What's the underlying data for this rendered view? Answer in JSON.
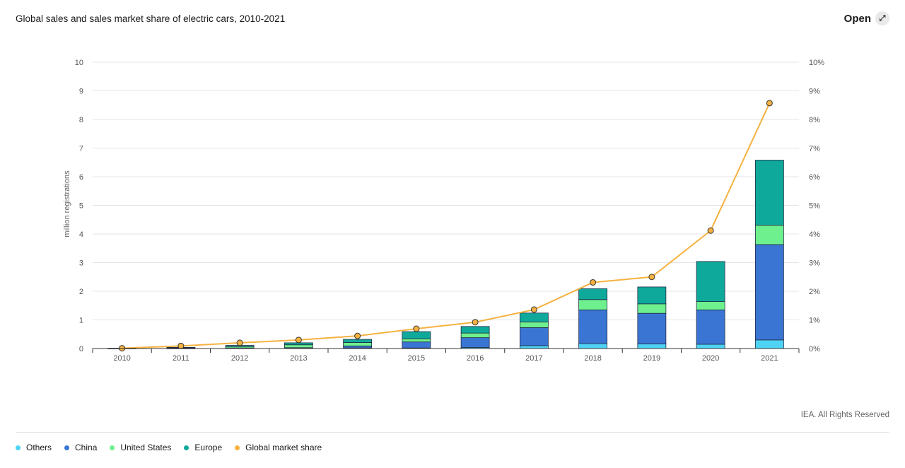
{
  "header": {
    "title": "Global sales and sales market share of electric cars, 2010-2021",
    "open_label": "Open",
    "open_icon": "expand-arrows-icon"
  },
  "footer": {
    "credit": "IEA. All Rights Reserved"
  },
  "colors": {
    "Others": "#4fd3f5",
    "China": "#3a75d4",
    "United States": "#6ef08e",
    "Europe": "#0fa99b",
    "Global market share": "#f5b240"
  },
  "chart_data": {
    "type": "bar",
    "stacked": true,
    "title": "Global sales and sales market share of electric cars, 2010-2021",
    "ylabel": "million registrations",
    "ylim": [
      0,
      10
    ],
    "y_ticks": [
      "0",
      "1",
      "2",
      "3",
      "4",
      "5",
      "6",
      "7",
      "8",
      "9",
      "10"
    ],
    "y2lim": [
      0,
      10
    ],
    "y2_ticks": [
      "0%",
      "1%",
      "2%",
      "3%",
      "4%",
      "5%",
      "6%",
      "7%",
      "8%",
      "9%",
      "10%"
    ],
    "categories": [
      "2010",
      "2011",
      "2012",
      "2013",
      "2014",
      "2015",
      "2016",
      "2017",
      "2018",
      "2019",
      "2020",
      "2021"
    ],
    "series": [
      {
        "name": "Others",
        "type": "bar",
        "values": [
          0.002,
          0.005,
          0.01,
          0.01,
          0.02,
          0.02,
          0.04,
          0.1,
          0.17,
          0.16,
          0.15,
          0.3
        ]
      },
      {
        "name": "China",
        "type": "bar",
        "values": [
          0.001,
          0.005,
          0.01,
          0.02,
          0.07,
          0.21,
          0.34,
          0.63,
          1.18,
          1.07,
          1.2,
          3.33
        ]
      },
      {
        "name": "United States",
        "type": "bar",
        "values": [
          0.002,
          0.01,
          0.05,
          0.1,
          0.12,
          0.11,
          0.16,
          0.2,
          0.36,
          0.33,
          0.29,
          0.68
        ]
      },
      {
        "name": "Europe",
        "type": "bar",
        "values": [
          0.002,
          0.02,
          0.04,
          0.07,
          0.11,
          0.25,
          0.23,
          0.31,
          0.38,
          0.59,
          1.4,
          2.27
        ]
      },
      {
        "name": "Global market share",
        "type": "line",
        "axis": "right",
        "unit": "%",
        "values": [
          0.01,
          0.09,
          0.2,
          0.3,
          0.44,
          0.69,
          0.92,
          1.36,
          2.31,
          2.5,
          4.12,
          8.57
        ]
      }
    ],
    "grid": true,
    "legend": "bottom-left"
  }
}
